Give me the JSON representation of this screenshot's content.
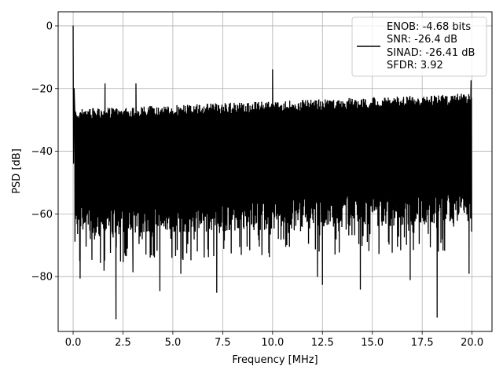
{
  "chart_data": {
    "type": "line",
    "xlabel": "Frequency [MHz]",
    "ylabel": "PSD [dB]",
    "xlim": [
      -0.75,
      21.0
    ],
    "ylim": [
      -97.5,
      4.5
    ],
    "grid": true,
    "x_ticks": [
      0.0,
      2.5,
      5.0,
      7.5,
      10.0,
      12.5,
      15.0,
      17.5,
      20.0
    ],
    "x_tick_labels": [
      "0.0",
      "2.5",
      "5.0",
      "7.5",
      "10.0",
      "12.5",
      "15.0",
      "17.5",
      "20.0"
    ],
    "y_ticks": [
      0,
      -20,
      -40,
      -60,
      -80
    ],
    "y_tick_labels": [
      "0",
      "−20",
      "−40",
      "−60",
      "−80"
    ],
    "legend": {
      "placement": "top-right",
      "entries": [
        "ENOB: -4.68 bits",
        "SNR: -26.4 dB",
        "SINAD: -26.41 dB",
        "SFDR: 3.92"
      ]
    },
    "series": [
      {
        "color": "#000000",
        "x_range": [
          0.0,
          20.0
        ],
        "noise_envelope": {
          "upper_start_db": -26.5,
          "upper_end_db": -21.5,
          "lower_start_db": -62,
          "lower_end_db": -58
        },
        "peaks": [
          {
            "x": 0.0,
            "y": 0.0
          },
          {
            "x": 0.05,
            "y": -20.0
          },
          {
            "x": 1.6,
            "y": -18.5
          },
          {
            "x": 3.15,
            "y": -18.5
          },
          {
            "x": 10.0,
            "y": -14.0
          },
          {
            "x": 19.95,
            "y": -17.5
          }
        ],
        "dips": [
          {
            "x": 0.35,
            "y": -80.5
          },
          {
            "x": 1.55,
            "y": -78.0
          },
          {
            "x": 2.15,
            "y": -93.5
          },
          {
            "x": 3.0,
            "y": -78.5
          },
          {
            "x": 4.35,
            "y": -84.5
          },
          {
            "x": 5.4,
            "y": -79.0
          },
          {
            "x": 7.2,
            "y": -85.0
          },
          {
            "x": 12.25,
            "y": -80.0
          },
          {
            "x": 12.5,
            "y": -82.5
          },
          {
            "x": 14.4,
            "y": -84.0
          },
          {
            "x": 16.9,
            "y": -81.0
          },
          {
            "x": 18.25,
            "y": -93.0
          },
          {
            "x": 19.85,
            "y": -79.0
          }
        ]
      }
    ]
  }
}
